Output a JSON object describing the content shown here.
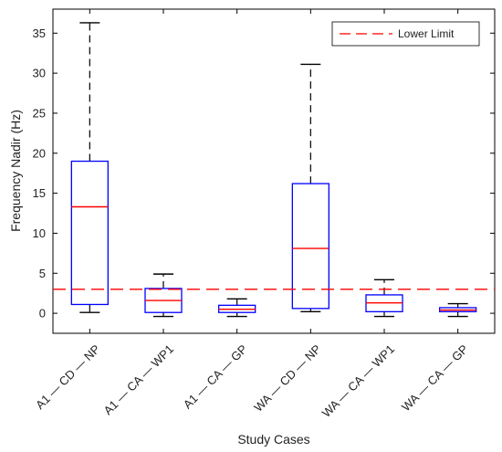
{
  "chart_data": {
    "type": "box",
    "title": "",
    "xlabel": "Study Cases",
    "ylabel": "Frequency Nadir (Hz)",
    "ylim": [
      -2.5,
      38
    ],
    "yticks": [
      0,
      5,
      10,
      15,
      20,
      25,
      30,
      35
    ],
    "grid": false,
    "legend": {
      "position": "top-right",
      "entries": [
        "Lower Limit"
      ]
    },
    "categories": [
      {
        "parts": [
          "A1",
          "CD",
          "NP"
        ]
      },
      {
        "parts": [
          "A1",
          "CA",
          "WP1"
        ]
      },
      {
        "parts": [
          "A1",
          "CA",
          "GP"
        ]
      },
      {
        "parts": [
          "WA",
          "CD",
          "NP"
        ]
      },
      {
        "parts": [
          "WA",
          "CA",
          "WP1"
        ]
      },
      {
        "parts": [
          "WA",
          "CA",
          "GP"
        ]
      }
    ],
    "category_separator": "—",
    "boxes": [
      {
        "whisker_low": 0.1,
        "q1": 1.1,
        "median": 13.3,
        "q3": 19.0,
        "whisker_high": 36.3
      },
      {
        "whisker_low": -0.4,
        "q1": 0.1,
        "median": 1.6,
        "q3": 3.1,
        "whisker_high": 4.9
      },
      {
        "whisker_low": -0.4,
        "q1": 0.1,
        "median": 0.5,
        "q3": 1.0,
        "whisker_high": 1.8
      },
      {
        "whisker_low": 0.2,
        "q1": 0.6,
        "median": 8.1,
        "q3": 16.2,
        "whisker_high": 31.1
      },
      {
        "whisker_low": -0.4,
        "q1": 0.2,
        "median": 1.3,
        "q3": 2.3,
        "whisker_high": 4.2
      },
      {
        "whisker_low": -0.4,
        "q1": 0.2,
        "median": 0.4,
        "q3": 0.7,
        "whisker_high": 1.2
      }
    ],
    "reference_line": {
      "name": "Lower Limit",
      "y": 3.0,
      "style": "dashed"
    },
    "colors": {
      "box": "#0000ff",
      "median": "#ff0000",
      "whisker": "#000000",
      "reference": "#ff0000"
    }
  }
}
